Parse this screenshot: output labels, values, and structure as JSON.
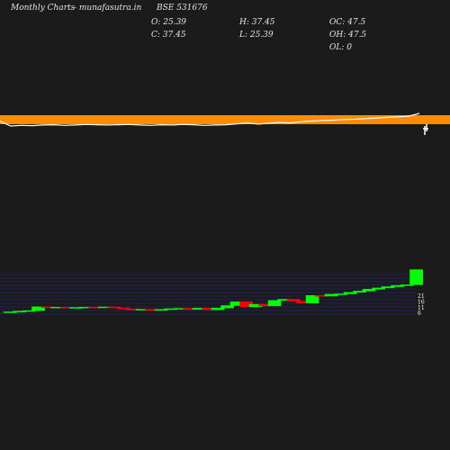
{
  "header": {
    "period": "Monthly Charts",
    "site": "- munafasutra.in",
    "symbol": "BSE 531676",
    "open": "O: 25.39",
    "close": "C: 37.45",
    "high": "H: 37.45",
    "low": "L: 25.39",
    "oc": "OC: 47.5",
    "oh": "OH: 47.5",
    "ol": "OL: 0"
  },
  "colors": {
    "background": "#1b1b1b",
    "band": "#ff8c00",
    "line": "#ffffff",
    "up": "#00ff00",
    "down": "#ff0000",
    "volume_grid": "#2a2a9a"
  },
  "chart_data": [
    {
      "type": "line",
      "x": [
        0,
        1,
        2,
        3,
        4,
        5,
        6,
        7,
        8,
        9,
        10,
        11,
        12,
        13,
        14,
        15,
        16,
        17,
        18,
        19,
        20,
        21,
        22,
        23,
        24,
        25,
        26,
        27,
        28,
        29,
        30,
        31,
        32,
        33,
        34,
        35,
        36,
        37,
        38,
        39
      ],
      "series": [
        {
          "values": [
            30,
            25.39,
            25.6,
            25.5,
            25.7,
            25.8,
            25.6,
            25.7,
            25.9,
            25.8,
            25.7,
            25.8,
            25.9,
            25.7,
            25.6,
            25.8,
            25.7,
            25.9,
            25.8,
            25.6,
            25.7,
            25.8,
            26.1,
            26.4,
            26,
            26.3,
            26.5,
            26.4,
            26.8,
            27,
            27.2,
            27.3,
            27.5,
            27.6,
            27.8,
            28,
            28.2,
            28.4,
            28.6,
            37.45
          ]
        }
      ]
    },
    {
      "type": "bar",
      "yticks": [
        "21",
        "16",
        "11",
        "6"
      ],
      "candles": [
        {
          "o": 2,
          "c": 2.5
        },
        {
          "o": 2.5,
          "c": 3
        },
        {
          "o": 3,
          "c": 3.5
        },
        {
          "o": 3.5,
          "c": 6.5
        },
        {
          "o": 6.5,
          "c": 6
        },
        {
          "o": 6,
          "c": 6.2
        },
        {
          "o": 6.2,
          "c": 5.8
        },
        {
          "o": 5.8,
          "c": 6
        },
        {
          "o": 6,
          "c": 6.3
        },
        {
          "o": 6.3,
          "c": 6
        },
        {
          "o": 6,
          "c": 6.4
        },
        {
          "o": 6.4,
          "c": 5.6
        },
        {
          "o": 5.6,
          "c": 4.8
        },
        {
          "o": 4.8,
          "c": 4.2
        },
        {
          "o": 4.2,
          "c": 4.5
        },
        {
          "o": 4.5,
          "c": 3.6
        },
        {
          "o": 3.6,
          "c": 4.4
        },
        {
          "o": 4.4,
          "c": 5
        },
        {
          "o": 5,
          "c": 5.3
        },
        {
          "o": 5.3,
          "c": 4.4
        },
        {
          "o": 4.4,
          "c": 5.4
        },
        {
          "o": 5.4,
          "c": 4.2
        },
        {
          "o": 4.2,
          "c": 5.6
        },
        {
          "o": 5.6,
          "c": 7.5
        },
        {
          "o": 7.5,
          "c": 10.5
        },
        {
          "o": 10.5,
          "c": 6.5
        },
        {
          "o": 6.5,
          "c": 8.5
        },
        {
          "o": 8.5,
          "c": 7.2
        },
        {
          "o": 7.2,
          "c": 11.5
        },
        {
          "o": 11.5,
          "c": 12.5
        },
        {
          "o": 12.5,
          "c": 11
        },
        {
          "o": 11,
          "c": 9.5
        },
        {
          "o": 9.5,
          "c": 15.5
        },
        {
          "o": 15.5,
          "c": 15
        },
        {
          "o": 15,
          "c": 16.5
        },
        {
          "o": 16.5,
          "c": 16.8
        },
        {
          "o": 16.8,
          "c": 18
        },
        {
          "o": 18,
          "c": 19
        },
        {
          "o": 19,
          "c": 20.5
        },
        {
          "o": 20.5,
          "c": 21.5
        },
        {
          "o": 21.5,
          "c": 22.5
        },
        {
          "o": 22.5,
          "c": 23.5
        },
        {
          "o": 23.5,
          "c": 24
        },
        {
          "o": 24,
          "c": 36
        }
      ]
    }
  ]
}
